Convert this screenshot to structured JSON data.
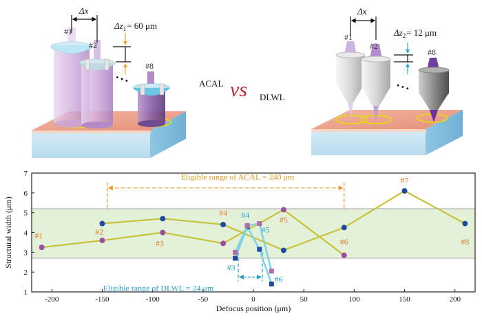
{
  "top_panel": {
    "left_setup": {
      "delta_x": "Δx",
      "delta_z": "Δz",
      "delta_z_sub": "1",
      "delta_z_value": "= 60 μm",
      "labels": [
        "#1",
        "#2",
        "#8"
      ]
    },
    "right_setup": {
      "delta_x": "Δx",
      "delta_z": "Δz",
      "delta_z_sub": "2",
      "delta_z_value": "= 12 μm",
      "labels": [
        "#1",
        "#2",
        "#8"
      ]
    },
    "acal_label": "ACAL",
    "vs_label": "vs",
    "dlwl_label": "DLWL",
    "dots": "• • •"
  },
  "chart_data": {
    "type": "line",
    "xlabel": "Defocus position (μm)",
    "ylabel": "Structural width (μm)",
    "xlim": [
      -220,
      220
    ],
    "ylim": [
      1,
      7
    ],
    "xticks": [
      -200,
      -150,
      -100,
      -50,
      0,
      50,
      100,
      150,
      200
    ],
    "yticks": [
      1,
      2,
      3,
      4,
      5,
      6,
      7
    ],
    "band": [
      2.7,
      5.2
    ],
    "series": [
      {
        "key": "acal_a",
        "color": "#c7c23a",
        "marker_color": "#1f4aa0",
        "marker": "circle",
        "x": [
          -150,
          -90,
          -30,
          30,
          90,
          150,
          210
        ],
        "y": [
          4.45,
          4.7,
          4.4,
          3.1,
          4.25,
          6.1,
          4.45
        ]
      },
      {
        "key": "acal_b",
        "color": "#c7c23a",
        "marker_color": "#9a4c9e",
        "marker": "circle",
        "x": [
          -210,
          -150,
          -90,
          -30,
          30,
          90
        ],
        "y": [
          3.25,
          3.6,
          4.0,
          3.45,
          5.15,
          2.85
        ]
      },
      {
        "key": "dlwl_a",
        "color": "#7fd4e2",
        "marker_color": "#1f4aa0",
        "marker": "square",
        "x": [
          -18,
          -6,
          6,
          18
        ],
        "y": [
          2.7,
          4.3,
          3.15,
          1.4
        ]
      },
      {
        "key": "dlwl_b",
        "color": "#7fd4e2",
        "marker_color": "#b46aa8",
        "marker": "square",
        "x": [
          -18,
          -6,
          6,
          18
        ],
        "y": [
          3.0,
          4.35,
          4.45,
          2.05
        ]
      }
    ],
    "acal_point_labels": [
      {
        "text": "#1",
        "x": -213,
        "y": 3.7
      },
      {
        "text": "#2",
        "x": -153,
        "y": 3.9
      },
      {
        "text": "#3",
        "x": -93,
        "y": 3.3
      },
      {
        "text": "#4",
        "x": -30,
        "y": 4.85
      },
      {
        "text": "#5",
        "x": 30,
        "y": 4.5
      },
      {
        "text": "#6",
        "x": 90,
        "y": 3.4
      },
      {
        "text": "#7",
        "x": 150,
        "y": 6.5
      },
      {
        "text": "#8",
        "x": 210,
        "y": 3.4
      }
    ],
    "dlwl_point_labels": [
      {
        "text": "#3",
        "x": -22,
        "y": 2.1
      },
      {
        "text": "#4",
        "x": -8,
        "y": 4.75
      },
      {
        "text": "#5",
        "x": 12,
        "y": 4.0
      },
      {
        "text": "#6",
        "x": 25,
        "y": 1.5
      }
    ],
    "acal_range": {
      "label": "Eligible range of ACAL = 240 μm",
      "x": [
        -145,
        90
      ],
      "y": 6.25
    },
    "dlwl_range": {
      "label": "Eligible range of DLWL = 24 μm",
      "x": [
        -15,
        9
      ],
      "y": 1.75
    },
    "colors": {
      "label_orange": "#e07b2c",
      "range_orange": "#e59a2a",
      "range_cyan": "#2fa0cc",
      "band_fill": "#e3f1d8",
      "band_edge": "#a9a9a9"
    }
  }
}
